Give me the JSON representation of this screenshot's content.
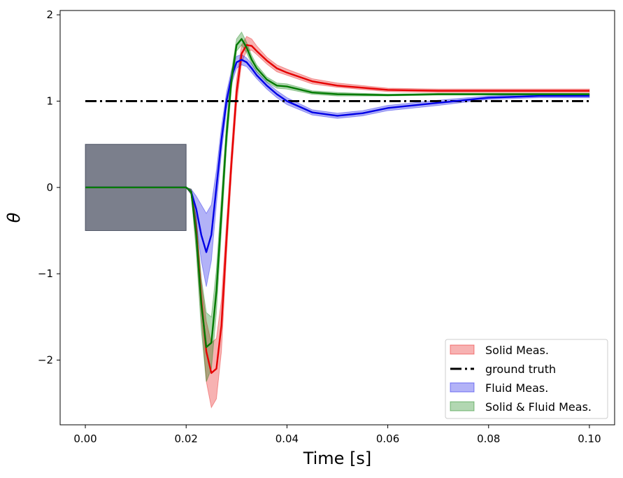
{
  "chart_data": {
    "type": "line",
    "title": "",
    "xlabel": "Time [s]",
    "ylabel": "θ",
    "xlim": [
      -0.005,
      0.105
    ],
    "ylim": [
      -2.75,
      2.05
    ],
    "xticks": [
      0.0,
      0.02,
      0.04,
      0.06,
      0.08,
      0.1
    ],
    "xtick_labels": [
      "0.00",
      "0.02",
      "0.04",
      "0.06",
      "0.08",
      "0.10"
    ],
    "yticks": [
      -2,
      -1,
      0,
      1,
      2
    ],
    "ytick_labels": [
      "−2",
      "−1",
      "0",
      "1",
      "2"
    ],
    "grid": false,
    "legend_position": "lower-right",
    "prior_band": {
      "x": [
        0.0,
        0.02
      ],
      "lower": -0.5,
      "upper": 0.5,
      "color": "#2a3045"
    },
    "series": [
      {
        "name": "Solid Meas.",
        "color": "#e60000",
        "x": [
          0,
          0.02,
          0.021,
          0.022,
          0.023,
          0.024,
          0.025,
          0.026,
          0.027,
          0.028,
          0.029,
          0.03,
          0.031,
          0.032,
          0.033,
          0.034,
          0.036,
          0.038,
          0.04,
          0.045,
          0.05,
          0.06,
          0.07,
          0.08,
          0.09,
          0.1
        ],
        "y": [
          0,
          0,
          -0.05,
          -0.5,
          -1.3,
          -1.9,
          -2.15,
          -2.1,
          -1.6,
          -0.6,
          0.3,
          1.1,
          1.55,
          1.65,
          1.64,
          1.58,
          1.47,
          1.38,
          1.33,
          1.23,
          1.18,
          1.13,
          1.12,
          1.12,
          1.12,
          1.12
        ],
        "lower": [
          0,
          0,
          -0.08,
          -0.65,
          -1.5,
          -2.25,
          -2.55,
          -2.45,
          -1.9,
          -0.8,
          0.15,
          0.95,
          1.45,
          1.58,
          1.59,
          1.54,
          1.43,
          1.34,
          1.3,
          1.2,
          1.16,
          1.11,
          1.1,
          1.1,
          1.1,
          1.1
        ],
        "upper": [
          0,
          0,
          -0.02,
          -0.35,
          -1.1,
          -1.55,
          -1.8,
          -1.75,
          -1.3,
          -0.4,
          0.45,
          1.25,
          1.65,
          1.75,
          1.72,
          1.64,
          1.51,
          1.42,
          1.37,
          1.26,
          1.21,
          1.15,
          1.14,
          1.14,
          1.14,
          1.14
        ]
      },
      {
        "name": "ground truth",
        "color": "#000000",
        "x": [
          0,
          0.1
        ],
        "y": [
          1,
          1
        ]
      },
      {
        "name": "Fluid Meas.",
        "color": "#0000e6",
        "x": [
          0,
          0.02,
          0.021,
          0.022,
          0.023,
          0.024,
          0.025,
          0.026,
          0.027,
          0.028,
          0.029,
          0.03,
          0.031,
          0.032,
          0.033,
          0.034,
          0.036,
          0.038,
          0.04,
          0.045,
          0.05,
          0.055,
          0.06,
          0.07,
          0.08,
          0.09,
          0.1
        ],
        "y": [
          0,
          0,
          -0.05,
          -0.25,
          -0.55,
          -0.75,
          -0.55,
          0.0,
          0.55,
          1.0,
          1.28,
          1.45,
          1.48,
          1.45,
          1.38,
          1.3,
          1.18,
          1.08,
          1.0,
          0.87,
          0.83,
          0.86,
          0.92,
          0.98,
          1.04,
          1.06,
          1.06
        ],
        "lower": [
          0,
          0,
          -0.08,
          -0.4,
          -0.85,
          -1.15,
          -0.85,
          -0.2,
          0.4,
          0.9,
          1.2,
          1.38,
          1.42,
          1.4,
          1.33,
          1.26,
          1.14,
          1.04,
          0.96,
          0.84,
          0.8,
          0.83,
          0.89,
          0.95,
          1.02,
          1.04,
          1.04
        ],
        "upper": [
          0,
          0,
          -0.02,
          -0.1,
          -0.2,
          -0.3,
          -0.2,
          0.2,
          0.7,
          1.1,
          1.36,
          1.52,
          1.54,
          1.5,
          1.43,
          1.34,
          1.22,
          1.12,
          1.04,
          0.9,
          0.86,
          0.89,
          0.95,
          1.01,
          1.06,
          1.08,
          1.08
        ]
      },
      {
        "name": "Solid & Fluid Meas.",
        "color": "#007a00",
        "x": [
          0,
          0.02,
          0.021,
          0.022,
          0.023,
          0.024,
          0.025,
          0.026,
          0.027,
          0.028,
          0.029,
          0.03,
          0.031,
          0.032,
          0.033,
          0.034,
          0.036,
          0.038,
          0.04,
          0.045,
          0.05,
          0.06,
          0.07,
          0.08,
          0.09,
          0.1
        ],
        "y": [
          0,
          0,
          -0.05,
          -0.55,
          -1.35,
          -1.85,
          -1.8,
          -1.2,
          -0.3,
          0.6,
          1.25,
          1.65,
          1.72,
          1.62,
          1.48,
          1.38,
          1.25,
          1.18,
          1.17,
          1.1,
          1.08,
          1.07,
          1.08,
          1.08,
          1.08,
          1.08
        ],
        "lower": [
          0,
          0,
          -0.08,
          -0.75,
          -1.65,
          -2.25,
          -2.1,
          -1.45,
          -0.5,
          0.45,
          1.15,
          1.58,
          1.65,
          1.56,
          1.43,
          1.34,
          1.22,
          1.15,
          1.14,
          1.08,
          1.06,
          1.06,
          1.07,
          1.07,
          1.07,
          1.07
        ],
        "upper": [
          0,
          0,
          -0.02,
          -0.35,
          -1.05,
          -1.45,
          -1.5,
          -0.95,
          -0.1,
          0.75,
          1.35,
          1.72,
          1.8,
          1.68,
          1.53,
          1.42,
          1.28,
          1.21,
          1.2,
          1.12,
          1.1,
          1.08,
          1.09,
          1.09,
          1.09,
          1.09
        ]
      }
    ]
  }
}
